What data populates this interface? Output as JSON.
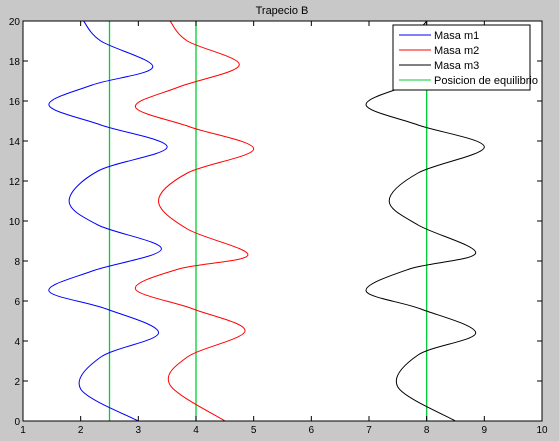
{
  "colors": {
    "figure_bg": "#c8c8c8",
    "axes_bg": "#ffffff",
    "masa1": "#0000ff",
    "masa2": "#ff0000",
    "masa3": "#000000",
    "equilibrio": "#00cc33"
  },
  "chart_data": {
    "type": "line",
    "title": "Trapecio B",
    "xlabel": "",
    "ylabel": "",
    "xlim": [
      1,
      10
    ],
    "ylim": [
      0,
      20
    ],
    "xticks": [
      1,
      2,
      3,
      4,
      5,
      6,
      7,
      8,
      9,
      10
    ],
    "yticks": [
      0,
      2,
      4,
      6,
      8,
      10,
      12,
      14,
      16,
      18,
      20
    ],
    "grid": false,
    "legend_position": "top-right",
    "series": [
      {
        "name": "Masa m1",
        "color": "#0000ff",
        "points": [
          [
            3.0,
            0
          ],
          [
            2.0,
            1.6
          ],
          [
            2.35,
            3.2
          ],
          [
            3.35,
            4.4
          ],
          [
            2.45,
            5.6
          ],
          [
            1.45,
            6.5
          ],
          [
            2.2,
            7.5
          ],
          [
            3.4,
            8.6
          ],
          [
            2.3,
            9.8
          ],
          [
            1.8,
            11.0
          ],
          [
            2.3,
            12.5
          ],
          [
            3.5,
            13.7
          ],
          [
            2.35,
            14.8
          ],
          [
            1.45,
            15.8
          ],
          [
            2.2,
            16.8
          ],
          [
            3.25,
            17.7
          ],
          [
            2.35,
            19.0
          ],
          [
            2.05,
            20
          ]
        ]
      },
      {
        "name": "Masa m2",
        "color": "#ff0000",
        "points": [
          [
            4.5,
            0
          ],
          [
            3.55,
            1.8
          ],
          [
            3.85,
            3.2
          ],
          [
            4.85,
            4.5
          ],
          [
            3.95,
            5.6
          ],
          [
            2.95,
            6.6
          ],
          [
            3.7,
            7.6
          ],
          [
            4.9,
            8.3
          ],
          [
            3.85,
            9.6
          ],
          [
            3.35,
            11.0
          ],
          [
            3.85,
            12.4
          ],
          [
            5.0,
            13.6
          ],
          [
            3.9,
            14.7
          ],
          [
            2.95,
            15.7
          ],
          [
            3.7,
            16.7
          ],
          [
            4.75,
            17.8
          ],
          [
            3.85,
            19.0
          ],
          [
            3.55,
            20
          ]
        ]
      },
      {
        "name": "Masa m3",
        "color": "#000000",
        "points": [
          [
            8.5,
            0
          ],
          [
            7.5,
            1.7
          ],
          [
            7.85,
            3.3
          ],
          [
            8.85,
            4.4
          ],
          [
            7.9,
            5.6
          ],
          [
            6.95,
            6.5
          ],
          [
            7.7,
            7.6
          ],
          [
            8.85,
            8.4
          ],
          [
            7.85,
            9.8
          ],
          [
            7.35,
            11.0
          ],
          [
            7.85,
            12.4
          ],
          [
            9.0,
            13.7
          ],
          [
            7.85,
            14.8
          ],
          [
            6.95,
            15.8
          ],
          [
            7.7,
            16.8
          ],
          [
            8.75,
            17.7
          ],
          [
            7.85,
            19.0
          ],
          [
            8.0,
            20
          ]
        ]
      },
      {
        "name": "Posicion de equilibrio",
        "color": "#00cc33",
        "segments": [
          [
            [
              2.5,
              0
            ],
            [
              2.5,
              20
            ]
          ],
          [
            [
              4,
              0
            ],
            [
              4,
              20
            ]
          ],
          [
            [
              8,
              0
            ],
            [
              8,
              20
            ]
          ]
        ]
      }
    ]
  }
}
